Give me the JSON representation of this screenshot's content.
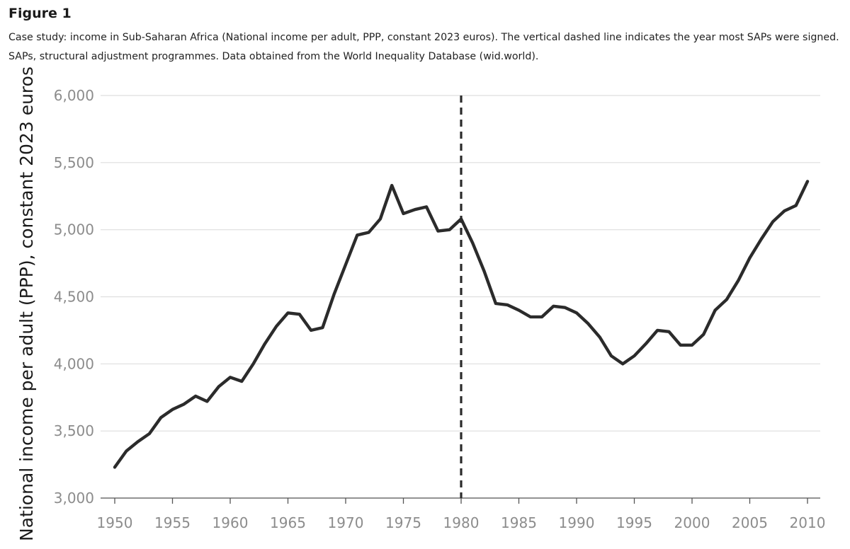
{
  "figure": {
    "label": "Figure 1",
    "caption": "Case study: income in Sub-Saharan Africa (National income per adult, PPP, constant 2023 euros). The vertical dashed line indicates the year most SAPs were signed. SAPs, structural adjustment programmes. Data obtained from the World Inequality Database (wid.world)."
  },
  "chart_data": {
    "type": "line",
    "title": "",
    "xlabel": "",
    "ylabel": "National income per adult (PPP), constant 2023 euros",
    "xlim": [
      1950,
      2010
    ],
    "ylim": [
      3000,
      6000
    ],
    "grid": true,
    "x_ticks": [
      1950,
      1955,
      1960,
      1965,
      1970,
      1975,
      1980,
      1985,
      1990,
      1995,
      2000,
      2005,
      2010
    ],
    "y_ticks": [
      3000,
      3500,
      4000,
      4500,
      5000,
      5500,
      6000
    ],
    "y_tick_labels": [
      "3,000",
      "3,500",
      "4,000",
      "4,500",
      "5,000",
      "5,500",
      "6,000"
    ],
    "reference_line": {
      "x": 1980,
      "style": "dashed",
      "meaning": "year most SAPs were signed"
    },
    "colors": {
      "line": "#2b2b2b",
      "grid": "#dedede",
      "tick_label": "#8c8c8c",
      "axis": "#555555"
    },
    "series": [
      {
        "name": "National income per adult",
        "x": [
          1950,
          1951,
          1952,
          1953,
          1954,
          1955,
          1956,
          1957,
          1958,
          1959,
          1960,
          1961,
          1962,
          1963,
          1964,
          1965,
          1966,
          1967,
          1968,
          1969,
          1970,
          1971,
          1972,
          1973,
          1974,
          1975,
          1976,
          1977,
          1978,
          1979,
          1980,
          1981,
          1982,
          1983,
          1984,
          1985,
          1986,
          1987,
          1988,
          1989,
          1990,
          1991,
          1992,
          1993,
          1994,
          1995,
          1996,
          1997,
          1998,
          1999,
          2000,
          2001,
          2002,
          2003,
          2004,
          2005,
          2006,
          2007,
          2008,
          2009,
          2010
        ],
        "values": [
          3230,
          3350,
          3420,
          3480,
          3600,
          3660,
          3700,
          3760,
          3720,
          3830,
          3900,
          3870,
          4000,
          4150,
          4280,
          4380,
          4370,
          4250,
          4270,
          4520,
          4740,
          4960,
          4980,
          5080,
          5330,
          5120,
          5150,
          5170,
          4990,
          5000,
          5080,
          4900,
          4690,
          4450,
          4440,
          4400,
          4350,
          4350,
          4430,
          4420,
          4380,
          4300,
          4200,
          4060,
          4000,
          4060,
          4150,
          4250,
          4240,
          4140,
          4140,
          4220,
          4400,
          4480,
          4620,
          4790,
          4930,
          5060,
          5140,
          5180,
          5360
        ]
      }
    ]
  }
}
